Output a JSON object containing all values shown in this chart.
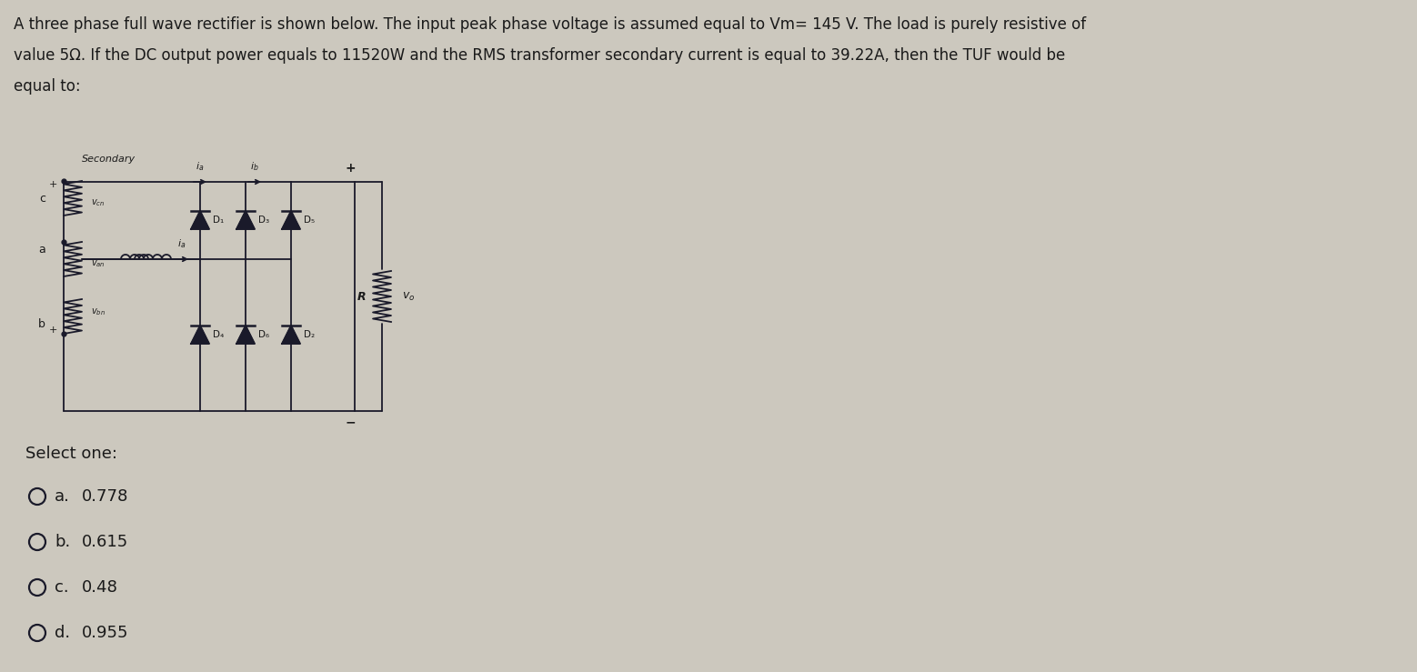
{
  "background_color": "#ccc8be",
  "title_line1": "A three phase full wave rectifier is shown below. The input peak phase voltage is assumed equal to Vm= 145 V. The load is purely resistive of",
  "title_line2": "value 5Ω. If the DC output power equals to 11520W and the RMS transformer secondary current is equal to 39.22A, then the TUF would be",
  "title_line3": "equal to:",
  "title_fontsize": 12.0,
  "text_color": "#1a1a1a",
  "select_one_text": "Select one:",
  "options": [
    {
      "label": "a.",
      "value": "0.778"
    },
    {
      "label": "b.",
      "value": "0.615"
    },
    {
      "label": "c.",
      "value": "0.48"
    },
    {
      "label": "d.",
      "value": "0.955"
    }
  ],
  "circuit_label_secondary": "Secondary",
  "option_fontsize": 13,
  "select_fontsize": 13,
  "col_dark": "#1a1a2a"
}
